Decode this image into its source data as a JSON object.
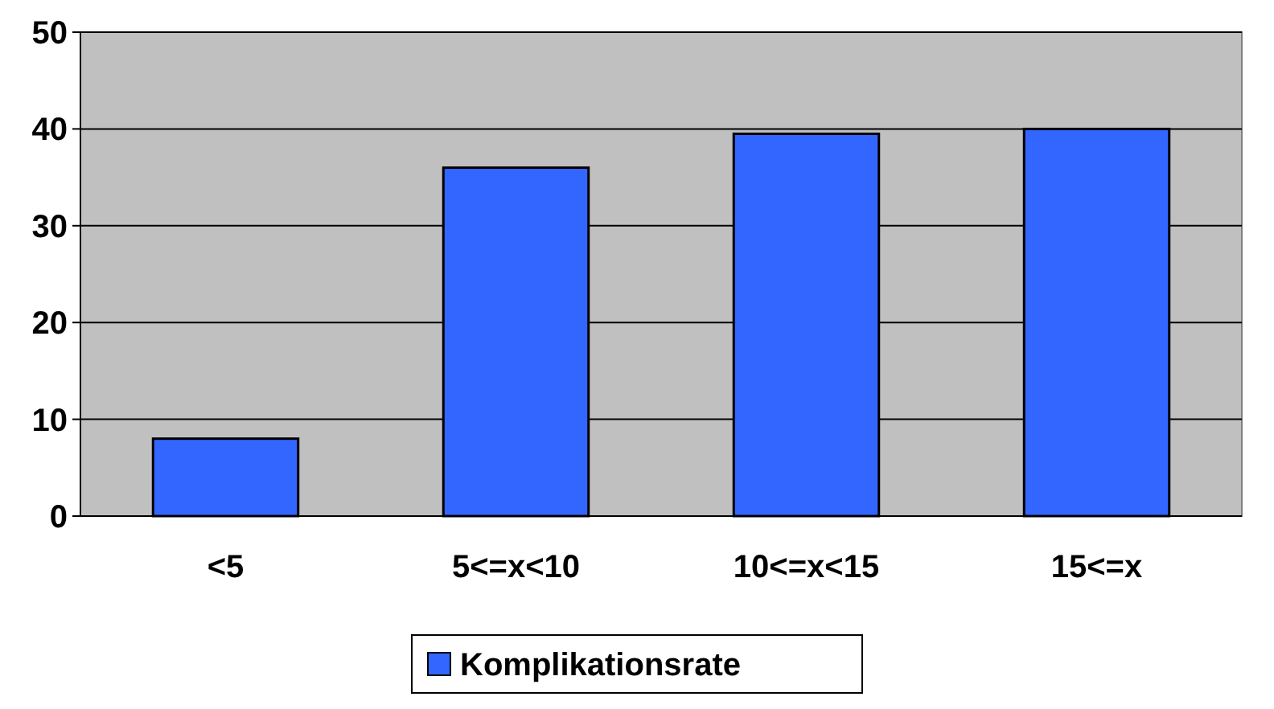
{
  "chart_data": {
    "type": "bar",
    "categories": [
      "<5",
      "5<=x<10",
      "10<=x<15",
      "15<=x"
    ],
    "series": [
      {
        "name": "Komplikationsrate",
        "color": "#3366ff",
        "values": [
          8,
          36,
          39.5,
          40
        ]
      }
    ],
    "ylim": [
      0,
      50
    ],
    "yticks": [
      0,
      10,
      20,
      30,
      40,
      50
    ],
    "grid": "y",
    "legend": "bottom"
  }
}
